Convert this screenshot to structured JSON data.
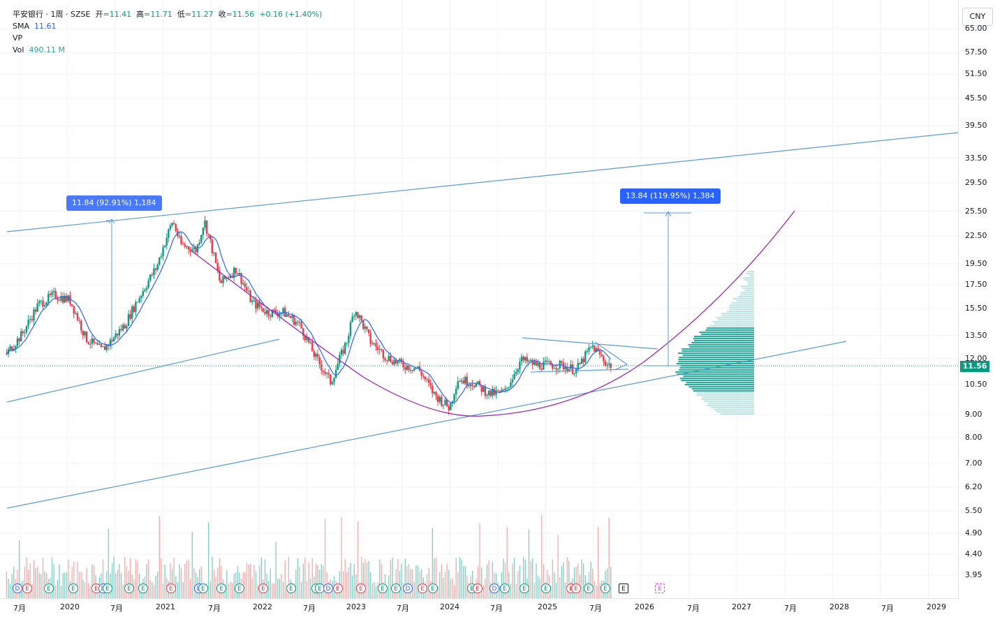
{
  "header": {
    "symbol": "平安银行 · 1周 · SZSE",
    "open_label": "开",
    "open": "=11.41",
    "high_label": "高",
    "high": "=11.71",
    "low_label": "低",
    "low": "=11.27",
    "close_label": "收",
    "close": "=11.56",
    "change": "+0.16 (+1.40%)"
  },
  "indicators": [
    {
      "name": "SMA",
      "value": "11.61"
    },
    {
      "name": "VP",
      "value": ""
    },
    {
      "name": "Vol",
      "value": "490.11 M"
    }
  ],
  "currency": "CNY",
  "price_axis": [
    "65.00",
    "57.50",
    "51.50",
    "45.50",
    "39.50",
    "33.50",
    "29.50",
    "25.50",
    "22.50",
    "19.50",
    "17.50",
    "15.50",
    "13.50",
    "12.00",
    "10.50",
    "9.00",
    "8.00",
    "7.00",
    "6.20",
    "5.50",
    "4.90",
    "4.40",
    "3.95"
  ],
  "last_price": "11.56",
  "time_axis": [
    "7月",
    "2020",
    "7月",
    "2021",
    "7月",
    "2022",
    "7月",
    "2023",
    "7月",
    "2024",
    "7月",
    "2025",
    "7月",
    "2026",
    "7月",
    "2027",
    "7月",
    "2028",
    "7月",
    "2029"
  ],
  "measures": [
    {
      "label": "11.84 (92.91%) 1,184"
    },
    {
      "label": "13.84 (119.95%) 1,384"
    }
  ],
  "events": [
    "D",
    "E",
    "E",
    "E",
    "E",
    "D",
    "E",
    "E",
    "E",
    "E",
    "D",
    "E",
    "E",
    "E",
    "E",
    "E",
    "E",
    "E",
    "D",
    "E",
    "E",
    "E",
    "E",
    "D",
    "E",
    "E",
    "E",
    "E",
    "D",
    "E",
    "E",
    "E",
    "E",
    "E",
    "E",
    "E",
    "E",
    "E"
  ],
  "colors": {
    "up": "#089981",
    "down": "#f23645",
    "trendline": "#5b9bd5",
    "arc": "#9c27b0",
    "sma": "#2962ff",
    "vp": "#26a69a"
  },
  "chart_data": {
    "type": "candlestick",
    "symbol": "平安银行",
    "interval": "1周",
    "exchange": "SZSE",
    "y_scale": "log",
    "ylim": [
      3.95,
      65.0
    ],
    "price_path": [
      [
        "2019-05",
        12.3
      ],
      [
        "2019-07",
        13.6
      ],
      [
        "2019-09",
        15.8
      ],
      [
        "2019-11",
        16.6
      ],
      [
        "2020-01",
        16.2
      ],
      [
        "2020-03",
        13.3
      ],
      [
        "2020-05",
        12.5
      ],
      [
        "2020-06",
        13.0
      ],
      [
        "2020-08",
        14.3
      ],
      [
        "2020-10",
        16.7
      ],
      [
        "2020-12",
        19.2
      ],
      [
        "2021-02",
        24.3
      ],
      [
        "2021-03",
        21.5
      ],
      [
        "2021-05",
        20.9
      ],
      [
        "2021-06",
        24.3
      ],
      [
        "2021-08",
        17.6
      ],
      [
        "2021-10",
        19.0
      ],
      [
        "2021-12",
        16.0
      ],
      [
        "2022-02",
        15.2
      ],
      [
        "2022-04",
        15.2
      ],
      [
        "2022-06",
        14.3
      ],
      [
        "2022-08",
        12.1
      ],
      [
        "2022-10",
        10.6
      ],
      [
        "2022-12",
        13.1
      ],
      [
        "2023-01",
        15.5
      ],
      [
        "2023-03",
        13.1
      ],
      [
        "2023-05",
        12.1
      ],
      [
        "2023-07",
        11.6
      ],
      [
        "2023-09",
        11.4
      ],
      [
        "2023-11",
        10.0
      ],
      [
        "2024-01",
        9.3
      ],
      [
        "2024-02",
        10.8
      ],
      [
        "2024-04",
        10.6
      ],
      [
        "2024-06",
        10.0
      ],
      [
        "2024-08",
        10.1
      ],
      [
        "2024-10",
        11.9
      ],
      [
        "2024-12",
        11.6
      ],
      [
        "2025-03",
        11.6
      ],
      [
        "2025-05",
        11.3
      ],
      [
        "2025-07",
        12.8
      ],
      [
        "2025-09",
        11.6
      ]
    ],
    "last": {
      "open": 11.41,
      "high": 11.71,
      "low": 11.27,
      "close": 11.56,
      "change": 0.16,
      "change_pct": 1.4
    },
    "sma_last": 11.61,
    "volume_last": "490.11 M",
    "drawings": [
      {
        "kind": "measure",
        "label": "11.84 (92.91%) 1,184"
      },
      {
        "kind": "measure",
        "label": "13.84 (119.95%) 1,384"
      }
    ]
  }
}
